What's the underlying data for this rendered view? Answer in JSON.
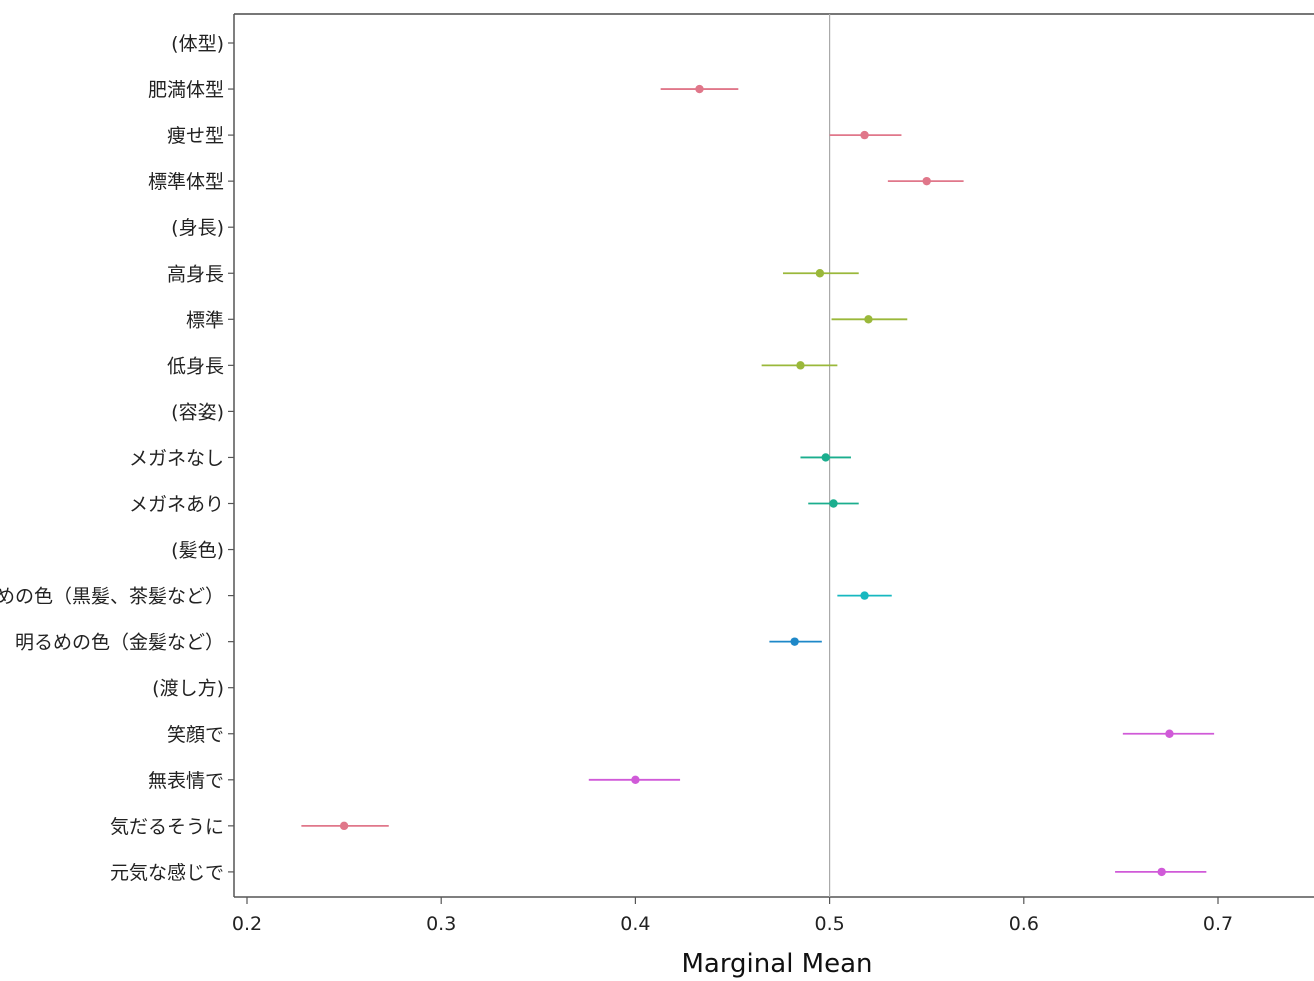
{
  "chart_data": {
    "type": "scatter",
    "subtype": "point-range (marginal means with confidence intervals)",
    "title": "",
    "xlabel": "Marginal Mean",
    "ylabel": "",
    "xlim": [
      0.193,
      0.745
    ],
    "xticks": [
      0.2,
      0.3,
      0.4,
      0.5,
      0.6,
      0.7
    ],
    "xtick_labels": [
      "0.2",
      "0.3",
      "0.4",
      "0.5",
      "0.6",
      "0.7"
    ],
    "reference_line": 0.5,
    "grid": false,
    "legend": "none",
    "rows": [
      {
        "label": "(体型)",
        "header": true
      },
      {
        "label": "肥満体型",
        "estimate": 0.433,
        "lower": 0.413,
        "upper": 0.453,
        "color": "#E0778A"
      },
      {
        "label": "痩せ型",
        "estimate": 0.518,
        "lower": 0.5,
        "upper": 0.537,
        "color": "#E0778A"
      },
      {
        "label": "標準体型",
        "estimate": 0.55,
        "lower": 0.53,
        "upper": 0.569,
        "color": "#E0778A"
      },
      {
        "label": "(身長)",
        "header": true
      },
      {
        "label": "高身長",
        "estimate": 0.495,
        "lower": 0.476,
        "upper": 0.515,
        "color": "#9AB83A"
      },
      {
        "label": "標準",
        "estimate": 0.52,
        "lower": 0.501,
        "upper": 0.54,
        "color": "#9AB83A"
      },
      {
        "label": "低身長",
        "estimate": 0.485,
        "lower": 0.465,
        "upper": 0.504,
        "color": "#9AB83A"
      },
      {
        "label": "(容姿)",
        "header": true
      },
      {
        "label": "メガネなし",
        "estimate": 0.498,
        "lower": 0.485,
        "upper": 0.511,
        "color": "#1BAE8E"
      },
      {
        "label": "メガネあり",
        "estimate": 0.502,
        "lower": 0.489,
        "upper": 0.515,
        "color": "#1BAE8E"
      },
      {
        "label": "(髪色)",
        "header": true
      },
      {
        "label": "暗めの色（黒髪、茶髪など）",
        "estimate": 0.518,
        "lower": 0.504,
        "upper": 0.532,
        "color": "#17B8C0"
      },
      {
        "label": "明るめの色（金髪など）",
        "estimate": 0.482,
        "lower": 0.469,
        "upper": 0.496,
        "color": "#1E88C8"
      },
      {
        "label": "(渡し方)",
        "header": true
      },
      {
        "label": "笑顔で",
        "estimate": 0.675,
        "lower": 0.651,
        "upper": 0.698,
        "color": "#D05AD8"
      },
      {
        "label": "無表情で",
        "estimate": 0.4,
        "lower": 0.376,
        "upper": 0.423,
        "color": "#D05AD8"
      },
      {
        "label": "気だるそうに",
        "estimate": 0.25,
        "lower": 0.228,
        "upper": 0.273,
        "color": "#E0778A"
      },
      {
        "label": "元気な感じで",
        "estimate": 0.671,
        "lower": 0.647,
        "upper": 0.694,
        "color": "#D05AD8"
      }
    ]
  }
}
